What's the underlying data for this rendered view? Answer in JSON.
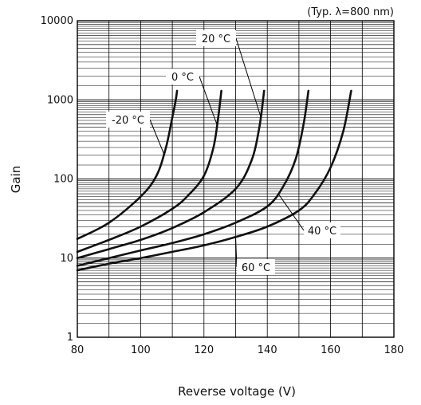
{
  "chart_data": {
    "type": "line",
    "title": "",
    "note": "(Typ. λ=800 nm)",
    "xlabel": "Reverse voltage (V)",
    "ylabel": "Gain",
    "xlim": [
      80,
      180
    ],
    "ylim": [
      1,
      10000
    ],
    "yscale": "log",
    "xticks": [
      "80",
      "100",
      "120",
      "140",
      "160",
      "180"
    ],
    "yticks": [
      "1",
      "10",
      "100",
      "1000",
      "10000"
    ],
    "grid": true,
    "series": [
      {
        "name": "-20 °C",
        "x": [
          80,
          90,
          100,
          105,
          108,
          110,
          111,
          111.5
        ],
        "y": [
          17.5,
          28,
          60,
          110,
          250,
          600,
          950,
          1300
        ]
      },
      {
        "name": "0 °C",
        "x": [
          80,
          90,
          100,
          110,
          115,
          120,
          123,
          124.5,
          125.5
        ],
        "y": [
          12,
          17,
          25,
          42,
          62,
          110,
          250,
          600,
          1300
        ]
      },
      {
        "name": "20 °C",
        "x": [
          80,
          90,
          100,
          110,
          120,
          130,
          135,
          137.5,
          139
        ],
        "y": [
          10,
          13,
          17,
          24,
          38,
          75,
          170,
          450,
          1300
        ]
      },
      {
        "name": "40 °C",
        "x": [
          80,
          90,
          100,
          110,
          120,
          130,
          140,
          145,
          149,
          151.5,
          153
        ],
        "y": [
          8,
          10,
          12.5,
          15.5,
          20,
          28,
          45,
          80,
          180,
          500,
          1300
        ]
      },
      {
        "name": "60 °C",
        "x": [
          80,
          90,
          100,
          110,
          120,
          130,
          140,
          150,
          155,
          160,
          164,
          166.5
        ],
        "y": [
          7,
          8.5,
          10,
          12,
          14.5,
          18.5,
          25,
          40,
          65,
          140,
          400,
          1300
        ]
      }
    ],
    "annotations": [
      {
        "text": "-20 °C"
      },
      {
        "text": "0 °C"
      },
      {
        "text": "20 °C"
      },
      {
        "text": "40 °C"
      },
      {
        "text": "60 °C"
      }
    ]
  }
}
